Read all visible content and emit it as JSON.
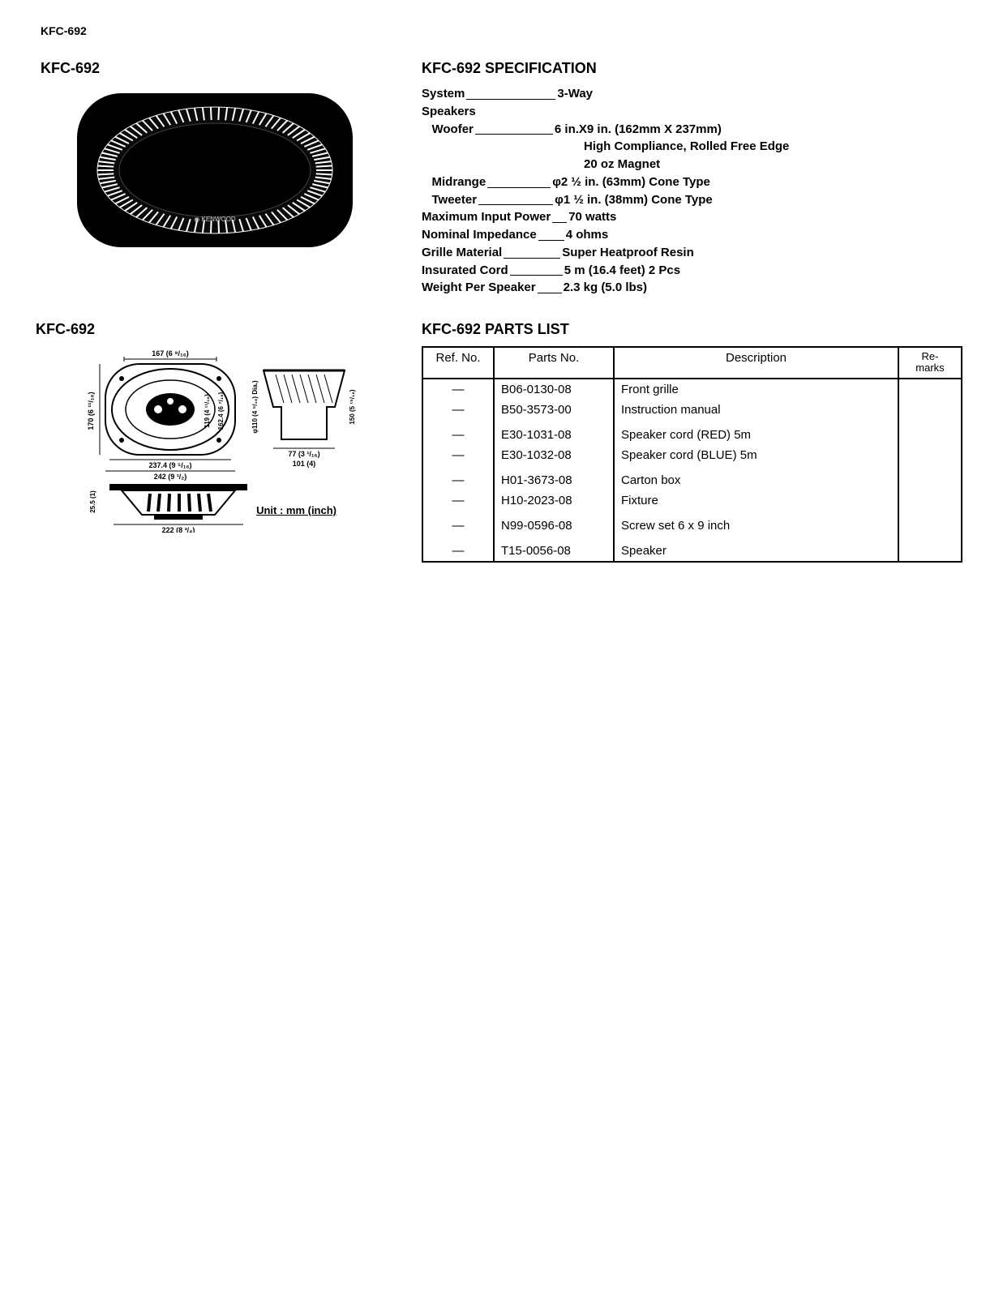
{
  "header_model": "KFC-692",
  "left": {
    "title1": "KFC-692",
    "title2": "KFC-692",
    "unit_label": "Unit : mm (inch)",
    "grille_brand": "KENWOOD",
    "dims": {
      "top_w": "167 (6 ⁹/₁₆)",
      "left_h": "170 (6 ¹¹/₁₆)",
      "inner_h1": "119 (4 ¹¹/₁₆)",
      "inner_h2": "162.4 (6 ⁷/₁₆)",
      "bottom_w1": "237.4 (9 ⁵/₁₆)",
      "bottom_w2": "242 (9 ¹/₂)",
      "side_d1": "77 (3 ¹/₁₆)",
      "side_d2": "101 (4)",
      "side_h1": "φ110 (4 ⁵/₁₆) Dia.)",
      "side_h2": "150 (5 ¹⁵/₁₆)",
      "profile_h": "25.5 (1)",
      "profile_w": "222 (8 ³/₄)"
    }
  },
  "spec": {
    "title": "KFC-692 SPECIFICATION",
    "rows": [
      {
        "label": "System",
        "dots_w": 110,
        "value": "3-Way"
      },
      {
        "label": "Speakers",
        "dots_w": 0,
        "value": ""
      },
      {
        "label": "   Woofer",
        "dots_w": 96,
        "value": "6 in.X9 in. (162mm X 237mm)"
      },
      {
        "label": "",
        "sub": true,
        "value": "High Compliance, Rolled Free Edge"
      },
      {
        "label": "",
        "sub": true,
        "value": "20 oz Magnet"
      },
      {
        "label": "   Midrange",
        "dots_w": 78,
        "value": "φ2 ½ in. (63mm) Cone Type"
      },
      {
        "label": "   Tweeter",
        "dots_w": 92,
        "value": "φ1 ½ in. (38mm) Cone Type"
      },
      {
        "label": "Maximum Input Power",
        "dots_w": 18,
        "value": "70 watts"
      },
      {
        "label": "Nominal Impedance",
        "dots_w": 32,
        "value": "4 ohms"
      },
      {
        "label": "Grille Material",
        "dots_w": 70,
        "value": "Super Heatproof Resin"
      },
      {
        "label": "Insurated Cord",
        "dots_w": 65,
        "value": "5 m (16.4 feet) 2 Pcs"
      },
      {
        "label": "Weight Per Speaker",
        "dots_w": 30,
        "value": "2.3 kg (5.0 lbs)"
      }
    ]
  },
  "parts": {
    "title": "KFC-692 PARTS LIST",
    "columns": [
      "Ref. No.",
      "Parts No.",
      "Description",
      "Re-\nmarks"
    ],
    "groups": [
      [
        {
          "ref": "—",
          "pn": "B06-0130-08",
          "desc": "Front grille",
          "rm": ""
        },
        {
          "ref": "—",
          "pn": "B50-3573-00",
          "desc": "Instruction manual",
          "rm": ""
        }
      ],
      [
        {
          "ref": "—",
          "pn": "E30-1031-08",
          "desc": "Speaker cord (RED) 5m",
          "rm": ""
        },
        {
          "ref": "—",
          "pn": "E30-1032-08",
          "desc": "Speaker cord (BLUE) 5m",
          "rm": ""
        }
      ],
      [
        {
          "ref": "—",
          "pn": "H01-3673-08",
          "desc": "Carton box",
          "rm": ""
        },
        {
          "ref": "—",
          "pn": "H10-2023-08",
          "desc": "Fixture",
          "rm": ""
        }
      ],
      [
        {
          "ref": "—",
          "pn": "N99-0596-08",
          "desc": "Screw set 6 x 9 inch",
          "rm": ""
        }
      ],
      [
        {
          "ref": "—",
          "pn": "T15-0056-08",
          "desc": "Speaker",
          "rm": ""
        }
      ]
    ]
  }
}
